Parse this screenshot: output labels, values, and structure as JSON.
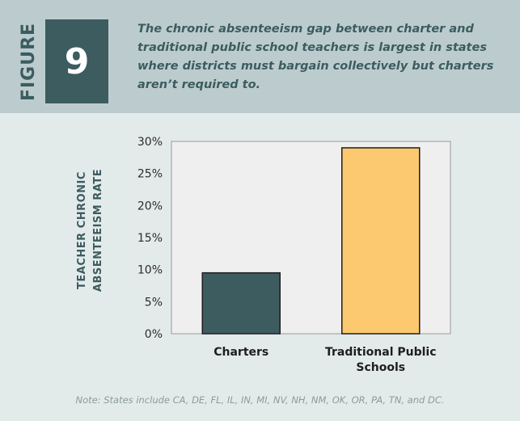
{
  "header": {
    "figure_word": "FIGURE",
    "figure_number": "9",
    "title": "The chronic absenteeism gap between charter and traditional public school teachers is largest in states where districts must bargain collectively but charters aren’t required to."
  },
  "chart_data": {
    "type": "bar",
    "categories": [
      [
        "Charters"
      ],
      [
        "Traditional Public",
        "Schools"
      ]
    ],
    "values": [
      9.5,
      29
    ],
    "colors": [
      "#3c5c5f",
      "#fdc970"
    ],
    "ylabel": [
      "TEACHER CHRONIC",
      "ABSENTEEISM RATE"
    ],
    "ylim": [
      0,
      30
    ],
    "yticks": [
      "0%",
      "5%",
      "10%",
      "15%",
      "20%",
      "25%",
      "30%"
    ],
    "grid": false
  },
  "note": "Note: States include CA, DE, FL, IL, IN, MI, NV, NH, NM, OK, OR, PA, TN, and DC."
}
